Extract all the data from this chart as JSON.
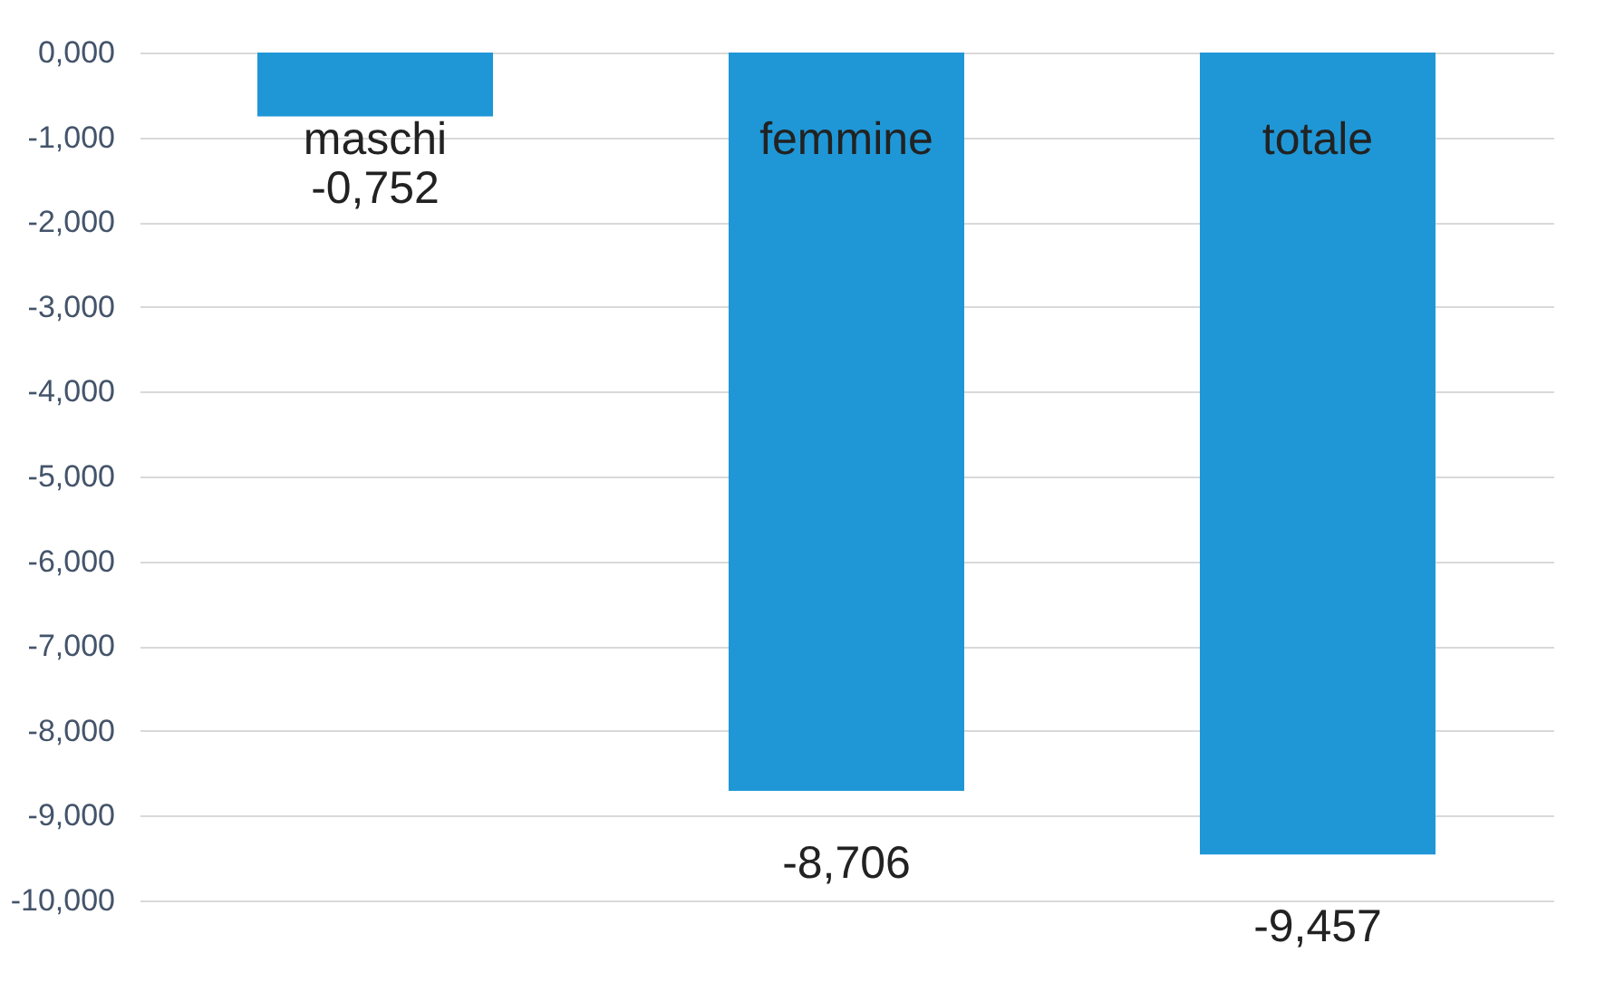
{
  "chart_data": {
    "type": "bar",
    "categories": [
      "maschi",
      "femmine",
      "totale"
    ],
    "values": [
      -0.752,
      -8.706,
      -9.457
    ],
    "value_labels": [
      "-0,752",
      "-8,706",
      "-9,457"
    ],
    "color": "#1f97d6",
    "ylim": [
      -10,
      0
    ],
    "yticks": [
      {
        "value": 0,
        "label": "0,000"
      },
      {
        "value": -1,
        "label": "-1,000"
      },
      {
        "value": -2,
        "label": "-2,000"
      },
      {
        "value": -3,
        "label": "-3,000"
      },
      {
        "value": -4,
        "label": "-4,000"
      },
      {
        "value": -5,
        "label": "-5,000"
      },
      {
        "value": -6,
        "label": "-6,000"
      },
      {
        "value": -7,
        "label": "-7,000"
      },
      {
        "value": -8,
        "label": "-8,000"
      },
      {
        "value": -9,
        "label": "-9,000"
      },
      {
        "value": -10,
        "label": "-10,000"
      }
    ],
    "grid": "y"
  }
}
